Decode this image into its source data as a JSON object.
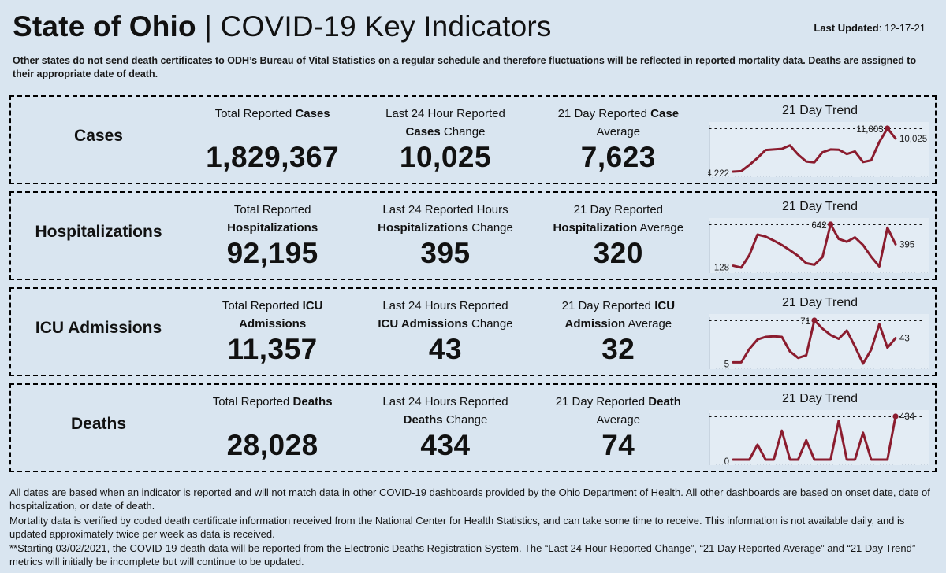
{
  "header": {
    "title_bold": "State of Ohio",
    "title_rest": " | COVID-19  Key Indicators",
    "last_updated_label": "Last Updated",
    "last_updated_value": ": 12-17-21"
  },
  "top_note": "Other states do not send death certificates to ODH’s Bureau of Vital Statistics on a regular schedule and therefore fluctuations will be reflected in reported mortality data. Deaths are assigned to their appropriate date of death.",
  "colors": {
    "page_bg": "#d9e5f0",
    "chart_bg": "#e3ecf4",
    "line": "#8b1c2e",
    "text": "#111111"
  },
  "rows": [
    {
      "id": "cases",
      "label": "Cases",
      "stats": [
        {
          "id": "total",
          "heading": [
            [
              {
                "t": "Total Reported ",
                "b": 0
              },
              {
                "t": "Cases",
                "b": 1
              }
            ]
          ],
          "value": "1,829,367"
        },
        {
          "id": "change-24h",
          "heading": [
            [
              {
                "t": "Last 24 Hour Reported",
                "b": 0
              }
            ],
            [
              {
                "t": "Cases",
                "b": 1
              },
              {
                "t": " Change",
                "b": 0
              }
            ]
          ],
          "value": "10,025"
        },
        {
          "id": "avg-21day",
          "heading": [
            [
              {
                "t": "21 Day Reported ",
                "b": 0
              },
              {
                "t": "Case",
                "b": 1
              }
            ],
            [
              {
                "t": "Average",
                "b": 0
              }
            ]
          ],
          "value": "7,623"
        }
      ]
    },
    {
      "id": "hospitalizations",
      "label": "Hospitalizations",
      "stats": [
        {
          "id": "total",
          "heading": [
            [
              {
                "t": "Total Reported",
                "b": 0
              }
            ],
            [
              {
                "t": "Hospitalizations",
                "b": 1
              }
            ]
          ],
          "value": "92,195"
        },
        {
          "id": "change-24h",
          "heading": [
            [
              {
                "t": "Last 24 Reported Hours",
                "b": 0
              }
            ],
            [
              {
                "t": "Hospitalizations",
                "b": 1
              },
              {
                "t": " Change",
                "b": 0
              }
            ]
          ],
          "value": "395"
        },
        {
          "id": "avg-21day",
          "heading": [
            [
              {
                "t": "21 Day Reported",
                "b": 0
              }
            ],
            [
              {
                "t": "Hospitalization",
                "b": 1
              },
              {
                "t": " Average",
                "b": 0
              }
            ]
          ],
          "value": "320"
        }
      ]
    },
    {
      "id": "icu-admissions",
      "label": "ICU Admissions",
      "stats": [
        {
          "id": "total",
          "heading": [
            [
              {
                "t": "Total Reported ",
                "b": 0
              },
              {
                "t": "ICU",
                "b": 1
              }
            ],
            [
              {
                "t": "Admissions",
                "b": 1
              }
            ]
          ],
          "value": "11,357"
        },
        {
          "id": "change-24h",
          "heading": [
            [
              {
                "t": "Last 24 Hours Reported",
                "b": 0
              }
            ],
            [
              {
                "t": "ICU Admissions",
                "b": 1
              },
              {
                "t": " Change",
                "b": 0
              }
            ]
          ],
          "value": "43"
        },
        {
          "id": "avg-21day",
          "heading": [
            [
              {
                "t": "21 Day Reported ",
                "b": 0
              },
              {
                "t": "ICU",
                "b": 1
              }
            ],
            [
              {
                "t": "Admission",
                "b": 1
              },
              {
                "t": " Average",
                "b": 0
              }
            ]
          ],
          "value": "32"
        }
      ]
    },
    {
      "id": "deaths",
      "label": "Deaths",
      "stats": [
        {
          "id": "total",
          "heading": [
            [
              {
                "t": "Total Reported ",
                "b": 0
              },
              {
                "t": "Deaths",
                "b": 1
              }
            ]
          ],
          "value": "28,028"
        },
        {
          "id": "change-24h",
          "heading": [
            [
              {
                "t": "Last 24 Hours Reported",
                "b": 0
              }
            ],
            [
              {
                "t": "Deaths",
                "b": 1
              },
              {
                "t": " Change",
                "b": 0
              }
            ]
          ],
          "value": "434"
        },
        {
          "id": "avg-21day",
          "heading": [
            [
              {
                "t": "21 Day Reported ",
                "b": 0
              },
              {
                "t": "Death",
                "b": 1
              }
            ],
            [
              {
                "t": "Average",
                "b": 0
              }
            ]
          ],
          "value": "74"
        }
      ]
    }
  ],
  "chart_data": [
    {
      "type": "line",
      "title": "21 Day Trend",
      "series_name": "Cases 21 day trend",
      "x_description": "last 21 days",
      "values": [
        4222,
        4300,
        5400,
        6600,
        8000,
        8100,
        8200,
        8800,
        7200,
        6000,
        5850,
        7600,
        8100,
        8050,
        7300,
        7750,
        5900,
        6200,
        9400,
        11803,
        10025
      ],
      "start_label": "4,222",
      "max_label": "11,803",
      "end_label": "10,025",
      "color": "#8b1c2e",
      "grid": false,
      "max_reference_line": true
    },
    {
      "type": "line",
      "title": "21 Day Trend",
      "series_name": "Hospitalizations 21 day trend",
      "x_description": "last 21 days",
      "values": [
        128,
        105,
        260,
        515,
        490,
        440,
        385,
        320,
        250,
        160,
        140,
        235,
        642,
        460,
        425,
        480,
        385,
        240,
        120,
        600,
        395
      ],
      "start_label": "128",
      "max_label": "642",
      "end_label": "395",
      "color": "#8b1c2e",
      "grid": false,
      "max_reference_line": true
    },
    {
      "type": "line",
      "title": "21 Day Trend",
      "series_name": "ICU Admissions 21 day trend",
      "x_description": "last 21 days",
      "values": [
        5,
        5,
        26,
        41,
        45,
        46,
        45,
        22,
        12,
        16,
        71,
        58,
        48,
        42,
        55,
        30,
        3,
        25,
        65,
        28,
        43
      ],
      "start_label": "5",
      "max_label": "71",
      "end_label": "43",
      "color": "#8b1c2e",
      "grid": false,
      "max_reference_line": true
    },
    {
      "type": "line",
      "title": "21 Day Trend",
      "series_name": "Deaths 21 day trend",
      "x_description": "last 21 days",
      "values": [
        0,
        0,
        0,
        150,
        0,
        0,
        290,
        0,
        0,
        195,
        0,
        0,
        0,
        390,
        0,
        0,
        270,
        0,
        0,
        0,
        434
      ],
      "start_label": "0",
      "max_label": "434",
      "end_label": "434",
      "color": "#8b1c2e",
      "grid": false,
      "max_reference_line": true
    }
  ],
  "footer_lines": [
    "All dates are based when an indicator is reported and will not match data in other COVID-19 dashboards provided by the Ohio Department of Health. All other dashboards are based on onset date, date of hospitalization, or date of death.",
    "Mortality data is verified by coded death certificate information received from the National Center for Health Statistics, and can take some time to receive. This information is not available daily, and is updated approximately twice per week as data is received.",
    "**Starting 03/02/2021, the COVID-19 death data will be reported from the Electronic Deaths Registration System. The “Last 24 Hour Reported Change”, “21 Day Reported Average” and “21 Day Trend” metrics will initially be incomplete but will continue to be updated."
  ]
}
